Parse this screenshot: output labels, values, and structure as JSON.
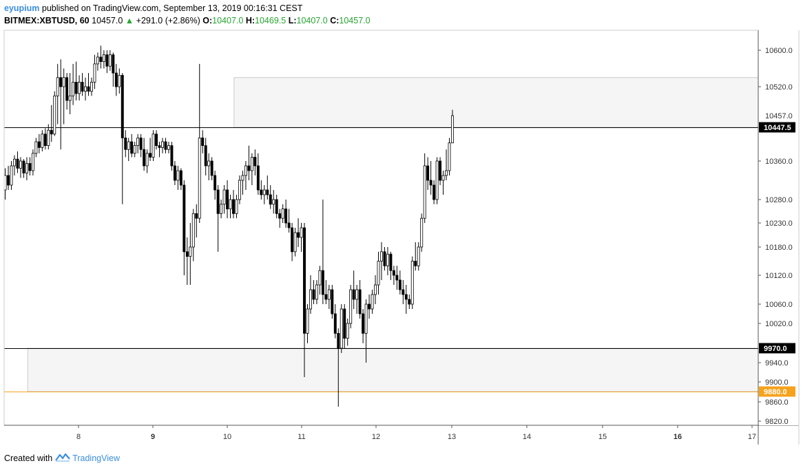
{
  "header": {
    "author": "eyupium",
    "published_text": "published on TradingView.com, September 13, 2019 00:16:31 CEST",
    "symbol": "BITMEX:XBTUSD, 60",
    "last": "10457.0",
    "change_arrow": "▲",
    "change": "+291.0 (+2.86%)",
    "o_label": "O:",
    "o_value": "10407.0",
    "h_label": "H:",
    "h_value": "10469.5",
    "l_label": "L:",
    "l_value": "10407.0",
    "c_label": "C:",
    "c_value": "10457.0"
  },
  "footer": {
    "created_text": "Created with",
    "brand": "TradingView",
    "logo_icon": "tradingview-logo-icon"
  },
  "colors": {
    "accent": "#3b8edd",
    "up_text": "#26a532",
    "orange_level": "#f7a21b",
    "candle": "#000000",
    "zone_fill": "#f5f5f5"
  },
  "chart_data": {
    "type": "candlestick",
    "title": "",
    "xlabel": "",
    "ylabel": "",
    "ylim": [
      9800,
      10640
    ],
    "x_ticks": [
      "8",
      "9",
      "10",
      "11",
      "12",
      "13",
      "14",
      "15",
      "16",
      "17"
    ],
    "x_ticks_bold": [
      "9",
      "16"
    ],
    "y_ticks": [
      "10600.0",
      "10520.0",
      "10360.0",
      "10280.0",
      "10230.0",
      "10180.0",
      "10120.0",
      "10060.0",
      "10020.0",
      "9940.0",
      "9900.0",
      "9860.0",
      "9820.0"
    ],
    "horizontal_lines": [
      {
        "price": 10447.5,
        "label": "10447.5",
        "color": "#000000"
      },
      {
        "price": 9970.0,
        "label": "9970.0",
        "color": "#000000"
      },
      {
        "price": 9880.0,
        "label": "9880.0",
        "color": "#f7a21b"
      }
    ],
    "last_price_marker": {
      "price": 10457.0,
      "label": "10457.0"
    },
    "zones": [
      {
        "name": "supply-zone",
        "start_day": 10.08,
        "end_day": 17.5,
        "price_low": 10447.5,
        "price_high": 10540.0
      },
      {
        "name": "demand-zone",
        "start_day": 7.32,
        "end_day": 17.5,
        "price_low": 9880.0,
        "price_high": 9970.0
      }
    ],
    "x_start_day": 7.02,
    "candles": [
      {
        "o": 10300,
        "h": 10345,
        "l": 10280,
        "c": 10330
      },
      {
        "o": 10330,
        "h": 10350,
        "l": 10300,
        "c": 10310
      },
      {
        "o": 10310,
        "h": 10360,
        "l": 10300,
        "c": 10350
      },
      {
        "o": 10350,
        "h": 10375,
        "l": 10330,
        "c": 10365
      },
      {
        "o": 10365,
        "h": 10385,
        "l": 10335,
        "c": 10345
      },
      {
        "o": 10345,
        "h": 10370,
        "l": 10325,
        "c": 10360
      },
      {
        "o": 10360,
        "h": 10365,
        "l": 10325,
        "c": 10335
      },
      {
        "o": 10335,
        "h": 10370,
        "l": 10320,
        "c": 10355
      },
      {
        "o": 10355,
        "h": 10370,
        "l": 10330,
        "c": 10340
      },
      {
        "o": 10340,
        "h": 10390,
        "l": 10330,
        "c": 10380
      },
      {
        "o": 10380,
        "h": 10420,
        "l": 10370,
        "c": 10410
      },
      {
        "o": 10410,
        "h": 10430,
        "l": 10380,
        "c": 10395
      },
      {
        "o": 10395,
        "h": 10440,
        "l": 10385,
        "c": 10430
      },
      {
        "o": 10430,
        "h": 10445,
        "l": 10390,
        "c": 10400
      },
      {
        "o": 10400,
        "h": 10450,
        "l": 10390,
        "c": 10440
      },
      {
        "o": 10440,
        "h": 10480,
        "l": 10410,
        "c": 10430
      },
      {
        "o": 10430,
        "h": 10510,
        "l": 10425,
        "c": 10500
      },
      {
        "o": 10500,
        "h": 10570,
        "l": 10450,
        "c": 10540
      },
      {
        "o": 10540,
        "h": 10580,
        "l": 10390,
        "c": 10520
      },
      {
        "o": 10520,
        "h": 10560,
        "l": 10450,
        "c": 10540
      },
      {
        "o": 10540,
        "h": 10550,
        "l": 10470,
        "c": 10490
      },
      {
        "o": 10490,
        "h": 10550,
        "l": 10460,
        "c": 10500
      },
      {
        "o": 10500,
        "h": 10570,
        "l": 10480,
        "c": 10530
      },
      {
        "o": 10530,
        "h": 10575,
        "l": 10490,
        "c": 10505
      },
      {
        "o": 10505,
        "h": 10545,
        "l": 10490,
        "c": 10530
      },
      {
        "o": 10530,
        "h": 10550,
        "l": 10500,
        "c": 10510
      },
      {
        "o": 10510,
        "h": 10540,
        "l": 10490,
        "c": 10520
      },
      {
        "o": 10520,
        "h": 10550,
        "l": 10500,
        "c": 10510
      },
      {
        "o": 10510,
        "h": 10540,
        "l": 10500,
        "c": 10530
      },
      {
        "o": 10530,
        "h": 10590,
        "l": 10515,
        "c": 10570
      },
      {
        "o": 10570,
        "h": 10595,
        "l": 10555,
        "c": 10585
      },
      {
        "o": 10585,
        "h": 10610,
        "l": 10560,
        "c": 10575
      },
      {
        "o": 10575,
        "h": 10600,
        "l": 10560,
        "c": 10590
      },
      {
        "o": 10590,
        "h": 10600,
        "l": 10550,
        "c": 10565
      },
      {
        "o": 10565,
        "h": 10600,
        "l": 10555,
        "c": 10590
      },
      {
        "o": 10590,
        "h": 10595,
        "l": 10520,
        "c": 10550
      },
      {
        "o": 10550,
        "h": 10570,
        "l": 10500,
        "c": 10520
      },
      {
        "o": 10520,
        "h": 10560,
        "l": 10505,
        "c": 10545
      },
      {
        "o": 10545,
        "h": 10550,
        "l": 10270,
        "c": 10420
      },
      {
        "o": 10420,
        "h": 10440,
        "l": 10370,
        "c": 10390
      },
      {
        "o": 10390,
        "h": 10420,
        "l": 10360,
        "c": 10410
      },
      {
        "o": 10410,
        "h": 10430,
        "l": 10370,
        "c": 10380
      },
      {
        "o": 10380,
        "h": 10410,
        "l": 10370,
        "c": 10400
      },
      {
        "o": 10400,
        "h": 10430,
        "l": 10380,
        "c": 10420
      },
      {
        "o": 10420,
        "h": 10430,
        "l": 10370,
        "c": 10390
      },
      {
        "o": 10390,
        "h": 10420,
        "l": 10340,
        "c": 10350
      },
      {
        "o": 10350,
        "h": 10390,
        "l": 10335,
        "c": 10380
      },
      {
        "o": 10380,
        "h": 10420,
        "l": 10360,
        "c": 10370
      },
      {
        "o": 10370,
        "h": 10440,
        "l": 10360,
        "c": 10430
      },
      {
        "o": 10430,
        "h": 10440,
        "l": 10390,
        "c": 10400
      },
      {
        "o": 10400,
        "h": 10410,
        "l": 10370,
        "c": 10395
      },
      {
        "o": 10395,
        "h": 10420,
        "l": 10380,
        "c": 10410
      },
      {
        "o": 10410,
        "h": 10420,
        "l": 10380,
        "c": 10390
      },
      {
        "o": 10390,
        "h": 10410,
        "l": 10380,
        "c": 10400
      },
      {
        "o": 10400,
        "h": 10410,
        "l": 10340,
        "c": 10350
      },
      {
        "o": 10350,
        "h": 10360,
        "l": 10310,
        "c": 10320
      },
      {
        "o": 10320,
        "h": 10350,
        "l": 10300,
        "c": 10340
      },
      {
        "o": 10340,
        "h": 10345,
        "l": 10300,
        "c": 10310
      },
      {
        "o": 10310,
        "h": 10320,
        "l": 10120,
        "c": 10170
      },
      {
        "o": 10170,
        "h": 10200,
        "l": 10100,
        "c": 10160
      },
      {
        "o": 10160,
        "h": 10230,
        "l": 10100,
        "c": 10180
      },
      {
        "o": 10180,
        "h": 10260,
        "l": 10150,
        "c": 10250
      },
      {
        "o": 10250,
        "h": 10270,
        "l": 10200,
        "c": 10240
      },
      {
        "o": 10240,
        "h": 10570,
        "l": 10230,
        "c": 10420
      },
      {
        "o": 10420,
        "h": 10440,
        "l": 10380,
        "c": 10400
      },
      {
        "o": 10400,
        "h": 10420,
        "l": 10330,
        "c": 10350
      },
      {
        "o": 10350,
        "h": 10380,
        "l": 10320,
        "c": 10360
      },
      {
        "o": 10360,
        "h": 10370,
        "l": 10320,
        "c": 10330
      },
      {
        "o": 10330,
        "h": 10340,
        "l": 10280,
        "c": 10300
      },
      {
        "o": 10300,
        "h": 10310,
        "l": 10170,
        "c": 10250
      },
      {
        "o": 10250,
        "h": 10280,
        "l": 10240,
        "c": 10270
      },
      {
        "o": 10270,
        "h": 10310,
        "l": 10250,
        "c": 10300
      },
      {
        "o": 10300,
        "h": 10320,
        "l": 10240,
        "c": 10260
      },
      {
        "o": 10260,
        "h": 10290,
        "l": 10240,
        "c": 10280
      },
      {
        "o": 10280,
        "h": 10300,
        "l": 10240,
        "c": 10250
      },
      {
        "o": 10250,
        "h": 10290,
        "l": 10240,
        "c": 10280
      },
      {
        "o": 10280,
        "h": 10330,
        "l": 10270,
        "c": 10320
      },
      {
        "o": 10320,
        "h": 10340,
        "l": 10290,
        "c": 10330
      },
      {
        "o": 10330,
        "h": 10360,
        "l": 10300,
        "c": 10350
      },
      {
        "o": 10350,
        "h": 10400,
        "l": 10320,
        "c": 10340
      },
      {
        "o": 10340,
        "h": 10380,
        "l": 10310,
        "c": 10370
      },
      {
        "o": 10370,
        "h": 10390,
        "l": 10330,
        "c": 10350
      },
      {
        "o": 10350,
        "h": 10380,
        "l": 10290,
        "c": 10300
      },
      {
        "o": 10300,
        "h": 10320,
        "l": 10280,
        "c": 10290
      },
      {
        "o": 10290,
        "h": 10310,
        "l": 10270,
        "c": 10300
      },
      {
        "o": 10300,
        "h": 10330,
        "l": 10280,
        "c": 10290
      },
      {
        "o": 10290,
        "h": 10310,
        "l": 10260,
        "c": 10270
      },
      {
        "o": 10270,
        "h": 10300,
        "l": 10250,
        "c": 10280
      },
      {
        "o": 10280,
        "h": 10290,
        "l": 10240,
        "c": 10250
      },
      {
        "o": 10250,
        "h": 10260,
        "l": 10220,
        "c": 10240
      },
      {
        "o": 10240,
        "h": 10270,
        "l": 10230,
        "c": 10260
      },
      {
        "o": 10260,
        "h": 10280,
        "l": 10220,
        "c": 10230
      },
      {
        "o": 10230,
        "h": 10260,
        "l": 10210,
        "c": 10220
      },
      {
        "o": 10220,
        "h": 10230,
        "l": 10150,
        "c": 10170
      },
      {
        "o": 10170,
        "h": 10220,
        "l": 10160,
        "c": 10210
      },
      {
        "o": 10210,
        "h": 10240,
        "l": 10180,
        "c": 10200
      },
      {
        "o": 10200,
        "h": 10230,
        "l": 10170,
        "c": 10220
      },
      {
        "o": 10220,
        "h": 10230,
        "l": 9910,
        "c": 10000
      },
      {
        "o": 10000,
        "h": 10060,
        "l": 9980,
        "c": 10050
      },
      {
        "o": 10050,
        "h": 10120,
        "l": 10040,
        "c": 10090
      },
      {
        "o": 10090,
        "h": 10110,
        "l": 10060,
        "c": 10070
      },
      {
        "o": 10070,
        "h": 10110,
        "l": 10060,
        "c": 10100
      },
      {
        "o": 10100,
        "h": 10140,
        "l": 10080,
        "c": 10130
      },
      {
        "o": 10130,
        "h": 10280,
        "l": 10060,
        "c": 10080
      },
      {
        "o": 10080,
        "h": 10110,
        "l": 10060,
        "c": 10070
      },
      {
        "o": 10070,
        "h": 10100,
        "l": 10050,
        "c": 10090
      },
      {
        "o": 10090,
        "h": 10100,
        "l": 10030,
        "c": 10040
      },
      {
        "o": 10040,
        "h": 10060,
        "l": 9990,
        "c": 10000
      },
      {
        "o": 10000,
        "h": 10010,
        "l": 9850,
        "c": 9970
      },
      {
        "o": 9970,
        "h": 10060,
        "l": 9960,
        "c": 10050
      },
      {
        "o": 10050,
        "h": 10060,
        "l": 9970,
        "c": 9990
      },
      {
        "o": 9990,
        "h": 10030,
        "l": 9975,
        "c": 10020
      },
      {
        "o": 10020,
        "h": 10100,
        "l": 10010,
        "c": 10090
      },
      {
        "o": 10090,
        "h": 10130,
        "l": 10050,
        "c": 10070
      },
      {
        "o": 10070,
        "h": 10100,
        "l": 10040,
        "c": 10090
      },
      {
        "o": 10090,
        "h": 10110,
        "l": 10030,
        "c": 10040
      },
      {
        "o": 10040,
        "h": 10050,
        "l": 9980,
        "c": 10000
      },
      {
        "o": 10000,
        "h": 10070,
        "l": 9940,
        "c": 10060
      },
      {
        "o": 10060,
        "h": 10080,
        "l": 10030,
        "c": 10050
      },
      {
        "o": 10050,
        "h": 10090,
        "l": 10040,
        "c": 10080
      },
      {
        "o": 10080,
        "h": 10120,
        "l": 10060,
        "c": 10100
      },
      {
        "o": 10100,
        "h": 10170,
        "l": 10080,
        "c": 10150
      },
      {
        "o": 10150,
        "h": 10190,
        "l": 10110,
        "c": 10170
      },
      {
        "o": 10170,
        "h": 10180,
        "l": 10130,
        "c": 10140
      },
      {
        "o": 10140,
        "h": 10180,
        "l": 10120,
        "c": 10165
      },
      {
        "o": 10165,
        "h": 10170,
        "l": 10110,
        "c": 10130
      },
      {
        "o": 10130,
        "h": 10140,
        "l": 10100,
        "c": 10120
      },
      {
        "o": 10120,
        "h": 10140,
        "l": 10090,
        "c": 10110
      },
      {
        "o": 10110,
        "h": 10130,
        "l": 10080,
        "c": 10090
      },
      {
        "o": 10090,
        "h": 10110,
        "l": 10060,
        "c": 10080
      },
      {
        "o": 10080,
        "h": 10100,
        "l": 10040,
        "c": 10070
      },
      {
        "o": 10070,
        "h": 10080,
        "l": 10050,
        "c": 10060
      },
      {
        "o": 10060,
        "h": 10160,
        "l": 10050,
        "c": 10150
      },
      {
        "o": 10150,
        "h": 10190,
        "l": 10130,
        "c": 10140
      },
      {
        "o": 10140,
        "h": 10190,
        "l": 10130,
        "c": 10180
      },
      {
        "o": 10180,
        "h": 10250,
        "l": 10170,
        "c": 10240
      },
      {
        "o": 10240,
        "h": 10380,
        "l": 10230,
        "c": 10350
      },
      {
        "o": 10350,
        "h": 10370,
        "l": 10300,
        "c": 10320
      },
      {
        "o": 10320,
        "h": 10360,
        "l": 10290,
        "c": 10310
      },
      {
        "o": 10310,
        "h": 10320,
        "l": 10270,
        "c": 10280
      },
      {
        "o": 10280,
        "h": 10370,
        "l": 10270,
        "c": 10360
      },
      {
        "o": 10360,
        "h": 10370,
        "l": 10310,
        "c": 10320
      },
      {
        "o": 10320,
        "h": 10340,
        "l": 10290,
        "c": 10330
      },
      {
        "o": 10330,
        "h": 10390,
        "l": 10320,
        "c": 10340
      },
      {
        "o": 10340,
        "h": 10420,
        "l": 10330,
        "c": 10407
      },
      {
        "o": 10407,
        "h": 10469.5,
        "l": 10407,
        "c": 10457
      }
    ]
  }
}
